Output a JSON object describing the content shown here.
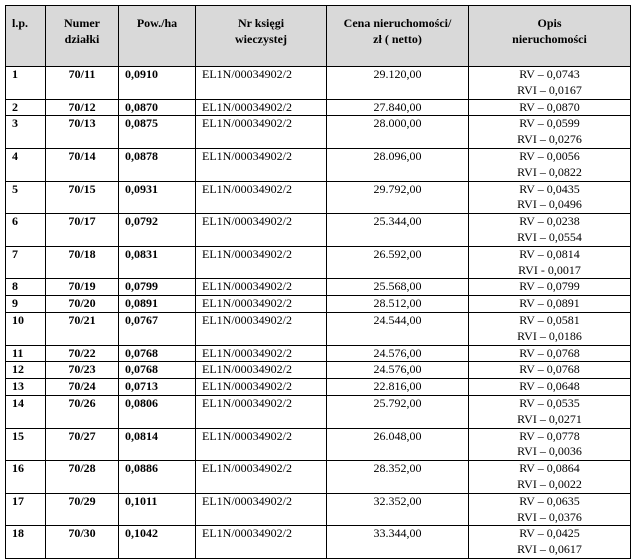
{
  "table": {
    "header": [
      [
        "l.p."
      ],
      [
        "Numer",
        "działki"
      ],
      [
        "Pow./ha"
      ],
      [
        "Nr księgi",
        "wieczystej"
      ],
      [
        "Cena nieruchomości/",
        "zł ( netto)"
      ],
      [
        "Opis",
        "nieruchomości"
      ]
    ],
    "rows": [
      [
        "1",
        "70/11",
        "0,0910",
        "EL1N/00034902/2",
        "29.120,00",
        [
          "RV – 0,0743",
          "RVI – 0,0167"
        ]
      ],
      [
        "2",
        "70/12",
        "0,0870",
        "EL1N/00034902/2",
        "27.840,00",
        [
          "RV – 0,0870"
        ]
      ],
      [
        "3",
        "70/13",
        "0,0875",
        "EL1N/00034902/2",
        "28.000,00",
        [
          "RV – 0,0599",
          "RVI – 0,0276"
        ]
      ],
      [
        "4",
        "70/14",
        "0,0878",
        "EL1N/00034902/2",
        "28.096,00",
        [
          "RV – 0,0056",
          "RVI – 0,0822"
        ]
      ],
      [
        "5",
        "70/15",
        "0,0931",
        "EL1N/00034902/2",
        "29.792,00",
        [
          "RV – 0,0435",
          "RVI – 0,0496"
        ]
      ],
      [
        "6",
        "70/17",
        "0,0792",
        "EL1N/00034902/2",
        "25.344,00",
        [
          "RV – 0,0238",
          "RVI – 0,0554"
        ]
      ],
      [
        "7",
        "70/18",
        "0,0831",
        "EL1N/00034902/2",
        "26.592,00",
        [
          "RV – 0,0814",
          "RVI - 0,0017"
        ]
      ],
      [
        "8",
        "70/19",
        "0,0799",
        "EL1N/00034902/2",
        "25.568,00",
        [
          "RV – 0,0799"
        ]
      ],
      [
        "9",
        "70/20",
        "0,0891",
        "EL1N/00034902/2",
        "28.512,00",
        [
          "RV – 0,0891"
        ]
      ],
      [
        "10",
        "70/21",
        "0,0767",
        "EL1N/00034902/2",
        "24.544,00",
        [
          "RV – 0,0581",
          "RVI – 0,0186"
        ]
      ],
      [
        "11",
        "70/22",
        "0,0768",
        "EL1N/00034902/2",
        "24.576,00",
        [
          "RV – 0,0768"
        ]
      ],
      [
        "12",
        "70/23",
        "0,0768",
        "EL1N/00034902/2",
        "24.576,00",
        [
          "RV – 0,0768"
        ]
      ],
      [
        "13",
        "70/24",
        "0,0713",
        "EL1N/00034902/2",
        "22.816,00",
        [
          "RV – 0,0648"
        ]
      ],
      [
        "14",
        "70/26",
        "0,0806",
        "EL1N/00034902/2",
        "25.792,00",
        [
          "RV – 0,0535",
          "RVI – 0,0271"
        ]
      ],
      [
        "15",
        "70/27",
        "0,0814",
        "EL1N/00034902/2",
        "26.048,00",
        [
          "RV – 0,0778",
          "RVI – 0,0036"
        ]
      ],
      [
        "16",
        "70/28",
        "0,0886",
        "EL1N/00034902/2",
        "28.352,00",
        [
          "RV – 0,0864",
          "RVI – 0,0022"
        ]
      ],
      [
        "17",
        "70/29",
        "0,1011",
        "EL1N/00034902/2",
        "32.352,00",
        [
          "RV – 0,0635",
          "RVI – 0,0376"
        ]
      ],
      [
        "18",
        "70/30",
        "0,1042",
        "EL1N/00034902/2",
        "33.344,00",
        [
          "RV – 0,0425",
          "RVI – 0,0617"
        ]
      ]
    ]
  }
}
